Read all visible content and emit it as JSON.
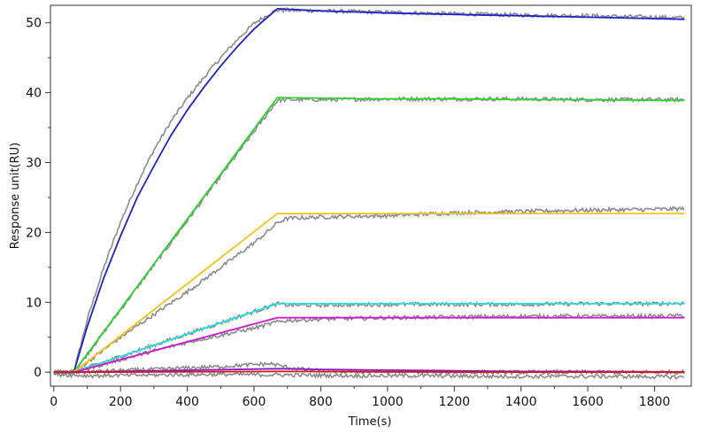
{
  "chart_data": {
    "type": "line",
    "title": "",
    "xlabel": "Time(s)",
    "ylabel": "Response unit(RU)",
    "xlim": [
      -10,
      1910
    ],
    "ylim": [
      -2,
      52.5
    ],
    "xticks": [
      0,
      200,
      400,
      600,
      800,
      1000,
      1200,
      1400,
      1600,
      1800
    ],
    "yticks": [
      0,
      10,
      20,
      30,
      40,
      50
    ],
    "grid": false,
    "legend": "none",
    "measured_color": "#8c8c8c",
    "series": [
      {
        "color": "#1f22c8",
        "x": [
          0,
          60,
          100,
          150,
          200,
          250,
          300,
          350,
          400,
          450,
          500,
          550,
          600,
          650,
          670,
          800,
          1000,
          1200,
          1400,
          1600,
          1800,
          1890
        ],
        "y": [
          0,
          0,
          6.5,
          13.5,
          19.5,
          25,
          29.5,
          33.8,
          37.5,
          40.8,
          43.8,
          46.6,
          49.1,
          51.2,
          52,
          51.7,
          51.4,
          51.2,
          51,
          50.8,
          50.6,
          50.5
        ]
      },
      {
        "color": "#2ed12e",
        "x": [
          0,
          60,
          670,
          800,
          1000,
          1200,
          1400,
          1600,
          1800,
          1890
        ],
        "y": [
          0,
          0,
          39.3,
          39.2,
          39.1,
          39.1,
          39,
          39,
          38.9,
          38.9
        ]
      },
      {
        "color": "#f0c419",
        "x": [
          0,
          60,
          670,
          800,
          1000,
          1200,
          1400,
          1600,
          1800,
          1890
        ],
        "y": [
          0,
          0,
          22.7,
          22.7,
          22.7,
          22.7,
          22.7,
          22.7,
          22.7,
          22.7
        ]
      },
      {
        "color": "#22e1e1",
        "x": [
          0,
          60,
          670,
          800,
          1000,
          1200,
          1400,
          1600,
          1800,
          1890
        ],
        "y": [
          0,
          0,
          9.8,
          9.8,
          9.8,
          9.8,
          9.8,
          9.8,
          9.8,
          9.8
        ]
      },
      {
        "color": "#d01ad0",
        "x": [
          0,
          60,
          670,
          800,
          1000,
          1200,
          1400,
          1600,
          1800,
          1890
        ],
        "y": [
          0,
          0,
          7.8,
          7.8,
          7.8,
          7.8,
          7.8,
          7.8,
          7.8,
          7.8
        ]
      },
      {
        "color": "#8a1ac8",
        "x": [
          0,
          60,
          670,
          800,
          1000,
          1200,
          1400,
          1600,
          1800,
          1890
        ],
        "y": [
          0,
          0,
          0.5,
          0.4,
          0.3,
          0.2,
          0.1,
          0.1,
          0.05,
          0.05
        ]
      },
      {
        "color": "#cc1a1a",
        "x": [
          0,
          60,
          670,
          1000,
          1400,
          1890
        ],
        "y": [
          0,
          0,
          0.1,
          0.05,
          0.02,
          0
        ]
      }
    ],
    "measured": [
      {
        "x": [
          0,
          60,
          100,
          150,
          200,
          250,
          300,
          350,
          400,
          450,
          500,
          550,
          600,
          650,
          670,
          700,
          800,
          1000,
          1200,
          1400,
          1600,
          1800,
          1890
        ],
        "y": [
          0,
          0,
          7.5,
          15,
          21.5,
          27,
          31.8,
          35.8,
          39.2,
          42.2,
          45,
          47.6,
          49.9,
          51.4,
          51.8,
          51.8,
          51.7,
          51.5,
          51.3,
          51.1,
          51,
          50.8,
          50.7
        ]
      },
      {
        "x": [
          0,
          60,
          670,
          700,
          800,
          1000,
          1200,
          1400,
          1600,
          1800,
          1890
        ],
        "y": [
          0,
          0,
          38.9,
          39,
          39,
          39.1,
          39.1,
          39.1,
          39,
          39,
          39
        ]
      },
      {
        "x": [
          0,
          60,
          200,
          400,
          600,
          650,
          670,
          700,
          800,
          1000,
          1200,
          1400,
          1600,
          1800,
          1890
        ],
        "y": [
          0,
          0,
          5,
          11.5,
          18.5,
          20.5,
          21.4,
          22,
          22.2,
          22.4,
          22.8,
          23,
          23.2,
          23.3,
          23.4
        ]
      },
      {
        "x": [
          0,
          60,
          670,
          700,
          800,
          1000,
          1200,
          1400,
          1600,
          1800,
          1890
        ],
        "y": [
          0,
          0,
          9.8,
          9.6,
          9.6,
          9.7,
          9.7,
          9.7,
          9.8,
          9.8,
          9.9
        ]
      },
      {
        "x": [
          0,
          60,
          200,
          400,
          600,
          670,
          700,
          800,
          1000,
          1200,
          1400,
          1600,
          1800,
          1890
        ],
        "y": [
          0,
          0,
          1.8,
          4.3,
          6.3,
          7.2,
          7.4,
          7.6,
          7.8,
          7.9,
          8,
          8,
          8,
          8.1
        ]
      },
      {
        "x": [
          0,
          60,
          300,
          500,
          600,
          650,
          670,
          700,
          750,
          800,
          900,
          1000,
          1200,
          1400,
          1600,
          1800,
          1890
        ],
        "y": [
          0,
          0,
          0.4,
          0.8,
          1.1,
          1.2,
          1.0,
          0.7,
          0.4,
          0.2,
          0.1,
          0.05,
          0,
          0,
          0,
          0,
          0
        ]
      },
      {
        "x": [
          0,
          100,
          300,
          500,
          700,
          900,
          1100,
          1300,
          1500,
          1700,
          1890
        ],
        "y": [
          -0.3,
          -0.5,
          -0.4,
          -0.3,
          -0.4,
          -0.5,
          -0.5,
          -0.6,
          -0.6,
          -0.6,
          -0.7
        ]
      }
    ]
  }
}
